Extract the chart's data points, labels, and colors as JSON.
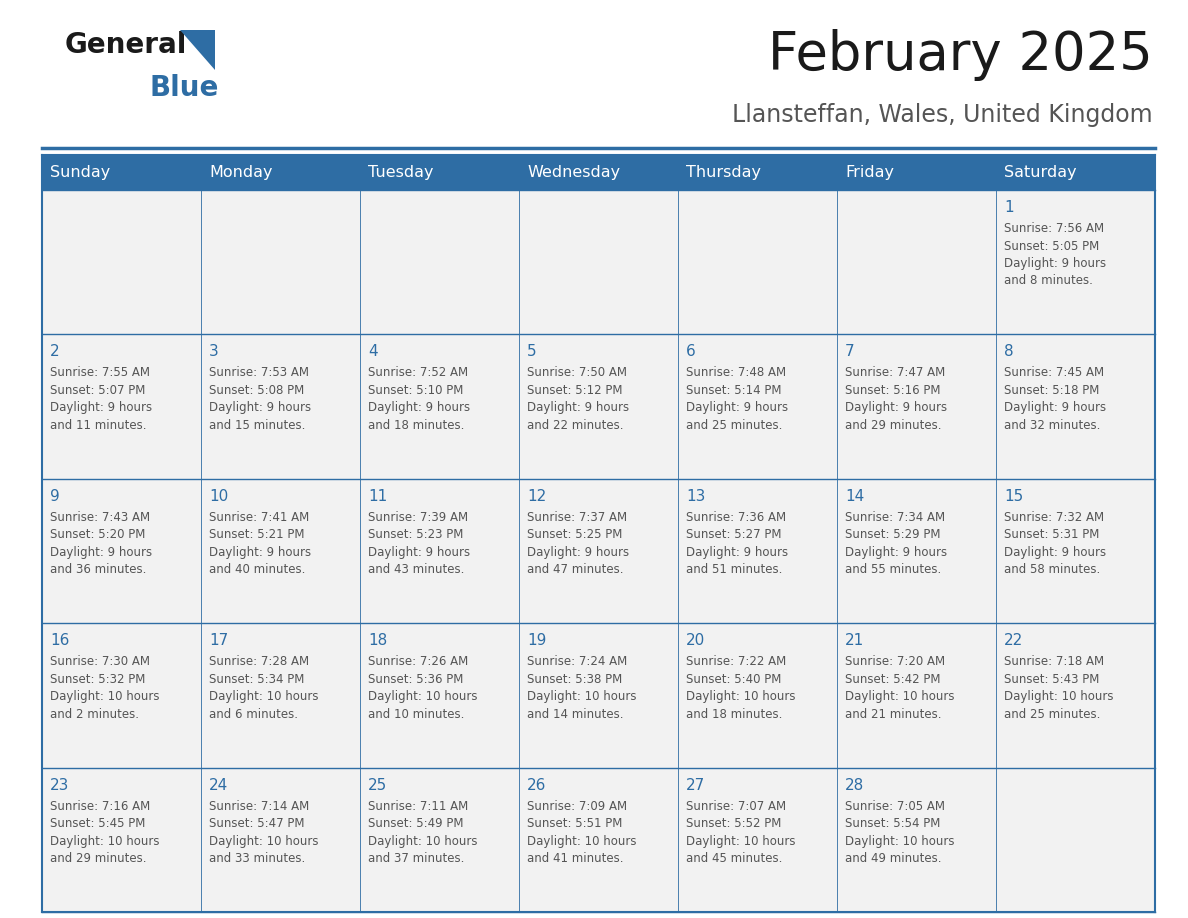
{
  "title": "February 2025",
  "subtitle": "Llansteffan, Wales, United Kingdom",
  "days_of_week": [
    "Sunday",
    "Monday",
    "Tuesday",
    "Wednesday",
    "Thursday",
    "Friday",
    "Saturday"
  ],
  "header_bg": "#2E6DA4",
  "header_fg": "#FFFFFF",
  "cell_bg": "#F2F2F2",
  "border_color": "#2E6DA4",
  "text_color": "#555555",
  "day_num_color": "#2E6DA4",
  "title_color": "#1a1a1a",
  "subtitle_color": "#555555",
  "calendar_data": [
    [
      null,
      null,
      null,
      null,
      null,
      null,
      {
        "day": 1,
        "sunrise": "7:56 AM",
        "sunset": "5:05 PM",
        "daylight": "9 hours\nand 8 minutes."
      }
    ],
    [
      {
        "day": 2,
        "sunrise": "7:55 AM",
        "sunset": "5:07 PM",
        "daylight": "9 hours\nand 11 minutes."
      },
      {
        "day": 3,
        "sunrise": "7:53 AM",
        "sunset": "5:08 PM",
        "daylight": "9 hours\nand 15 minutes."
      },
      {
        "day": 4,
        "sunrise": "7:52 AM",
        "sunset": "5:10 PM",
        "daylight": "9 hours\nand 18 minutes."
      },
      {
        "day": 5,
        "sunrise": "7:50 AM",
        "sunset": "5:12 PM",
        "daylight": "9 hours\nand 22 minutes."
      },
      {
        "day": 6,
        "sunrise": "7:48 AM",
        "sunset": "5:14 PM",
        "daylight": "9 hours\nand 25 minutes."
      },
      {
        "day": 7,
        "sunrise": "7:47 AM",
        "sunset": "5:16 PM",
        "daylight": "9 hours\nand 29 minutes."
      },
      {
        "day": 8,
        "sunrise": "7:45 AM",
        "sunset": "5:18 PM",
        "daylight": "9 hours\nand 32 minutes."
      }
    ],
    [
      {
        "day": 9,
        "sunrise": "7:43 AM",
        "sunset": "5:20 PM",
        "daylight": "9 hours\nand 36 minutes."
      },
      {
        "day": 10,
        "sunrise": "7:41 AM",
        "sunset": "5:21 PM",
        "daylight": "9 hours\nand 40 minutes."
      },
      {
        "day": 11,
        "sunrise": "7:39 AM",
        "sunset": "5:23 PM",
        "daylight": "9 hours\nand 43 minutes."
      },
      {
        "day": 12,
        "sunrise": "7:37 AM",
        "sunset": "5:25 PM",
        "daylight": "9 hours\nand 47 minutes."
      },
      {
        "day": 13,
        "sunrise": "7:36 AM",
        "sunset": "5:27 PM",
        "daylight": "9 hours\nand 51 minutes."
      },
      {
        "day": 14,
        "sunrise": "7:34 AM",
        "sunset": "5:29 PM",
        "daylight": "9 hours\nand 55 minutes."
      },
      {
        "day": 15,
        "sunrise": "7:32 AM",
        "sunset": "5:31 PM",
        "daylight": "9 hours\nand 58 minutes."
      }
    ],
    [
      {
        "day": 16,
        "sunrise": "7:30 AM",
        "sunset": "5:32 PM",
        "daylight": "10 hours\nand 2 minutes."
      },
      {
        "day": 17,
        "sunrise": "7:28 AM",
        "sunset": "5:34 PM",
        "daylight": "10 hours\nand 6 minutes."
      },
      {
        "day": 18,
        "sunrise": "7:26 AM",
        "sunset": "5:36 PM",
        "daylight": "10 hours\nand 10 minutes."
      },
      {
        "day": 19,
        "sunrise": "7:24 AM",
        "sunset": "5:38 PM",
        "daylight": "10 hours\nand 14 minutes."
      },
      {
        "day": 20,
        "sunrise": "7:22 AM",
        "sunset": "5:40 PM",
        "daylight": "10 hours\nand 18 minutes."
      },
      {
        "day": 21,
        "sunrise": "7:20 AM",
        "sunset": "5:42 PM",
        "daylight": "10 hours\nand 21 minutes."
      },
      {
        "day": 22,
        "sunrise": "7:18 AM",
        "sunset": "5:43 PM",
        "daylight": "10 hours\nand 25 minutes."
      }
    ],
    [
      {
        "day": 23,
        "sunrise": "7:16 AM",
        "sunset": "5:45 PM",
        "daylight": "10 hours\nand 29 minutes."
      },
      {
        "day": 24,
        "sunrise": "7:14 AM",
        "sunset": "5:47 PM",
        "daylight": "10 hours\nand 33 minutes."
      },
      {
        "day": 25,
        "sunrise": "7:11 AM",
        "sunset": "5:49 PM",
        "daylight": "10 hours\nand 37 minutes."
      },
      {
        "day": 26,
        "sunrise": "7:09 AM",
        "sunset": "5:51 PM",
        "daylight": "10 hours\nand 41 minutes."
      },
      {
        "day": 27,
        "sunrise": "7:07 AM",
        "sunset": "5:52 PM",
        "daylight": "10 hours\nand 45 minutes."
      },
      {
        "day": 28,
        "sunrise": "7:05 AM",
        "sunset": "5:54 PM",
        "daylight": "10 hours\nand 49 minutes."
      },
      null
    ]
  ],
  "fig_width": 11.88,
  "fig_height": 9.18,
  "logo_general_color": "#1a1a1a",
  "logo_blue_color": "#2E6DA4",
  "triangle_color": "#2E6DA4"
}
